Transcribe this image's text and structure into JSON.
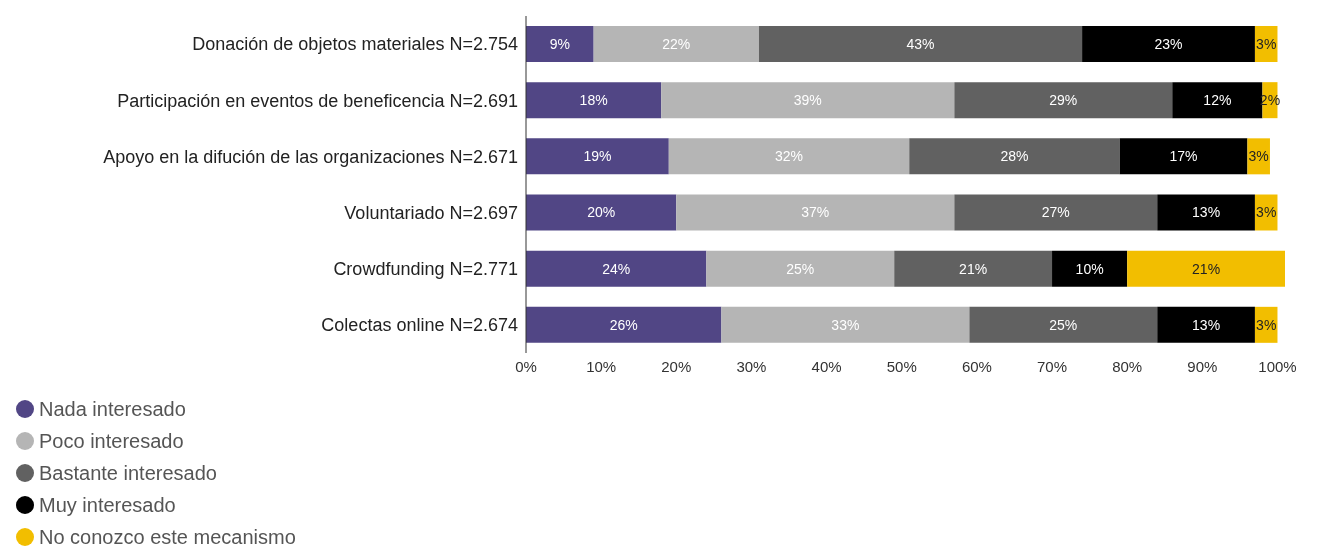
{
  "chart_data": {
    "type": "bar",
    "orientation": "horizontal",
    "stacked": true,
    "categories": [
      "Donación de objetos materiales N=2.754",
      "Participación en eventos de beneficencia N=2.691",
      "Apoyo en la difución de las organizaciones N=2.671",
      "Voluntariado N=2.697",
      "Crowdfunding N=2.771",
      "Colectas online N=2.674"
    ],
    "series": [
      {
        "name": "Nada interesado",
        "color": "#514685",
        "values": [
          9,
          18,
          19,
          20,
          24,
          26
        ],
        "value_labels": [
          "9%",
          "18%",
          "19%",
          "20%",
          "24%",
          "26%"
        ]
      },
      {
        "name": "Poco interesado",
        "color": "#b5b5b5",
        "values": [
          22,
          39,
          32,
          37,
          25,
          33
        ],
        "value_labels": [
          "22%",
          "39%",
          "32%",
          "37%",
          "25%",
          "33%"
        ]
      },
      {
        "name": "Bastante interesado",
        "color": "#616161",
        "values": [
          43,
          29,
          28,
          27,
          21,
          25
        ],
        "value_labels": [
          "43%",
          "29%",
          "28%",
          "27%",
          "21%",
          "25%"
        ]
      },
      {
        "name": "Muy interesado",
        "color": "#000000",
        "values": [
          23,
          12,
          17,
          13,
          10,
          13
        ],
        "value_labels": [
          "23%",
          "12%",
          "17%",
          "13%",
          "10%",
          "13%"
        ]
      },
      {
        "name": "No conozco este mecanismo",
        "color": "#f2be00",
        "values": [
          3,
          2,
          3,
          3,
          21,
          3
        ],
        "value_labels": [
          "3%",
          "2%",
          "3%",
          "3%",
          "21%",
          "3%"
        ]
      }
    ],
    "xlim": [
      0,
      101
    ],
    "xticks": [
      {
        "value": 0,
        "label": "0%"
      },
      {
        "value": 10,
        "label": "10%"
      },
      {
        "value": 20,
        "label": "20%"
      },
      {
        "value": 30,
        "label": "30%"
      },
      {
        "value": 40,
        "label": "40%"
      },
      {
        "value": 50,
        "label": "50%"
      },
      {
        "value": 60,
        "label": "60%"
      },
      {
        "value": 70,
        "label": "70%"
      },
      {
        "value": 80,
        "label": "80%"
      },
      {
        "value": 90,
        "label": "90%"
      },
      {
        "value": 100,
        "label": "100%"
      }
    ],
    "grid": false,
    "legend": "bottom left"
  }
}
